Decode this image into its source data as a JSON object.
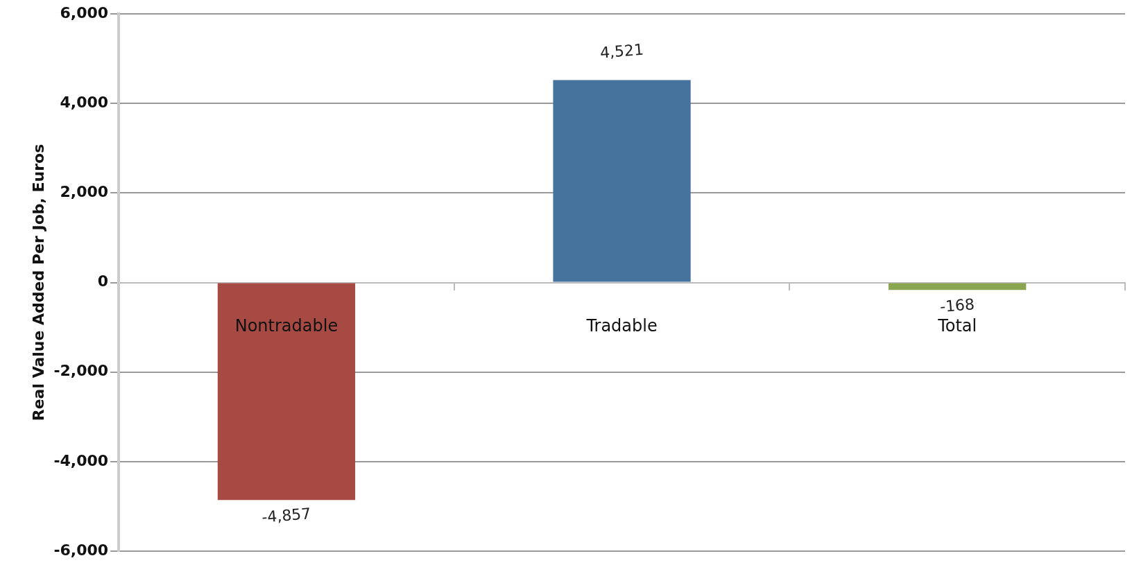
{
  "chart_data": {
    "type": "bar",
    "ylabel": "Real Value Added Per Job, Euros",
    "categories": [
      "Nontradable",
      "Tradable",
      "Total"
    ],
    "values": [
      -4857,
      4521,
      -168
    ],
    "colors": [
      "#a84a44",
      "#46739e",
      "#8aa54f"
    ],
    "value_labels": [
      "-4,857",
      "4,521",
      "-168"
    ],
    "ylim": [
      -6000,
      6000
    ],
    "yticks": [
      {
        "value": -6000,
        "label": "-6,000"
      },
      {
        "value": -4000,
        "label": "-4,000"
      },
      {
        "value": -2000,
        "label": "-2,000"
      },
      0,
      {
        "value": 2000,
        "label": "2,000"
      },
      {
        "value": 4000,
        "label": "4,000"
      },
      {
        "value": 6000,
        "label": "6,000"
      }
    ],
    "grid": "y"
  }
}
